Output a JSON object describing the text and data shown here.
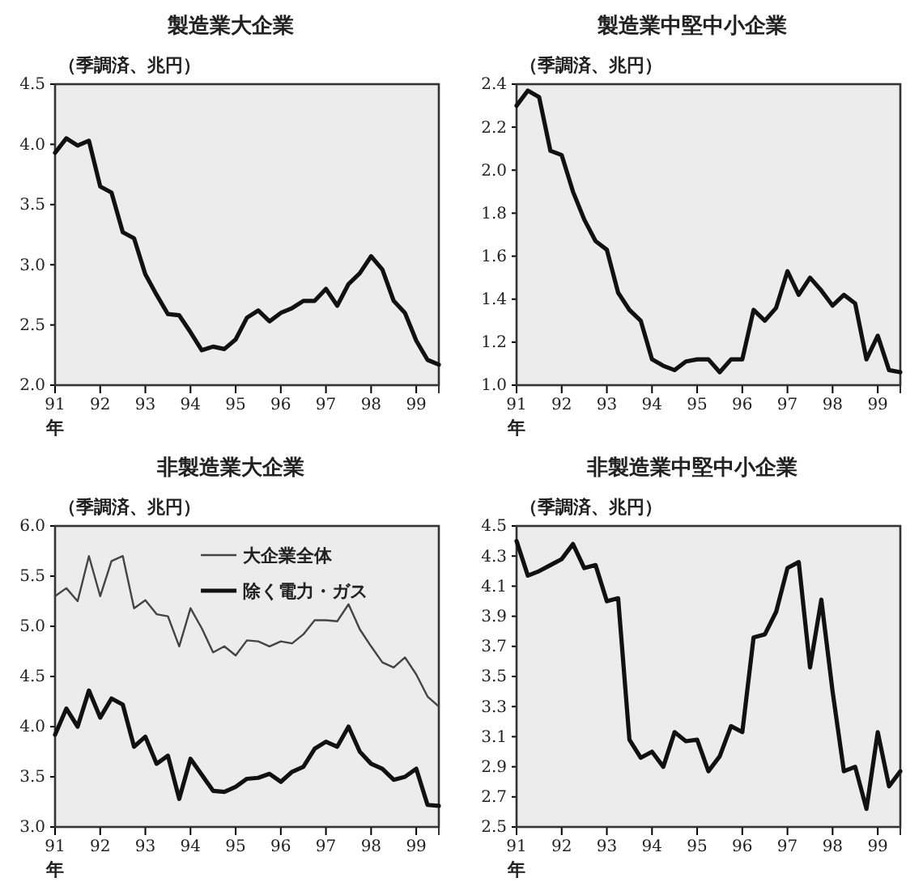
{
  "chart_data": [
    {
      "type": "line",
      "x": [
        1991,
        1991.25,
        1991.5,
        1991.75,
        1992,
        1992.25,
        1992.5,
        1992.75,
        1993,
        1993.25,
        1993.5,
        1993.75,
        1994,
        1994.25,
        1994.5,
        1994.75,
        1995,
        1995.25,
        1995.5,
        1995.75,
        1996,
        1996.25,
        1996.5,
        1996.75,
        1997,
        1997.25,
        1997.5,
        1997.75,
        1998,
        1998.25,
        1998.5,
        1998.75,
        1999,
        1999.25,
        1999.5
      ],
      "title": "製造業大企業",
      "ylabel": "（季調済、兆円）",
      "xlabel": "年",
      "xlim": [
        1991,
        1999.5
      ],
      "xticks": [
        {
          "value": 1991,
          "label": "91"
        },
        {
          "value": 1992,
          "label": "92"
        },
        {
          "value": 1993,
          "label": "93"
        },
        {
          "value": 1994,
          "label": "94"
        },
        {
          "value": 1995,
          "label": "95"
        },
        {
          "value": 1996,
          "label": "96"
        },
        {
          "value": 1997,
          "label": "97"
        },
        {
          "value": 1998,
          "label": "98"
        },
        {
          "value": 1999,
          "label": "99"
        }
      ],
      "ylim": [
        2,
        4.5
      ],
      "yticks": [
        {
          "value": 2,
          "label": "2.0"
        },
        {
          "value": 2.5,
          "label": "2.5"
        },
        {
          "value": 3,
          "label": "3.0"
        },
        {
          "value": 3.5,
          "label": "3.5"
        },
        {
          "value": 4,
          "label": "4.0"
        },
        {
          "value": 4.5,
          "label": "4.5"
        }
      ],
      "grid": false,
      "legend": false,
      "series": [
        {
          "color": "#111111",
          "values": [
            3.93,
            4.05,
            3.99,
            4.03,
            3.65,
            3.6,
            3.27,
            3.22,
            2.92,
            2.75,
            2.59,
            2.58,
            2.44,
            2.29,
            2.32,
            2.3,
            2.38,
            2.56,
            2.62,
            2.53,
            2.6,
            2.64,
            2.7,
            2.7,
            2.8,
            2.66,
            2.84,
            2.93,
            3.07,
            2.96,
            2.7,
            2.6,
            2.37,
            2.21,
            2.17
          ]
        }
      ]
    },
    {
      "type": "line",
      "x": [
        1991,
        1991.25,
        1991.5,
        1991.75,
        1992,
        1992.25,
        1992.5,
        1992.75,
        1993,
        1993.25,
        1993.5,
        1993.75,
        1994,
        1994.25,
        1994.5,
        1994.75,
        1995,
        1995.25,
        1995.5,
        1995.75,
        1996,
        1996.25,
        1996.5,
        1996.75,
        1997,
        1997.25,
        1997.5,
        1997.75,
        1998,
        1998.25,
        1998.5,
        1998.75,
        1999,
        1999.25,
        1999.5
      ],
      "title": "製造業中堅中小企業",
      "ylabel": "（季調済、兆円）",
      "xlabel": "年",
      "xlim": [
        1991,
        1999.5
      ],
      "xticks": [
        {
          "value": 1991,
          "label": "91"
        },
        {
          "value": 1992,
          "label": "92"
        },
        {
          "value": 1993,
          "label": "93"
        },
        {
          "value": 1994,
          "label": "94"
        },
        {
          "value": 1995,
          "label": "95"
        },
        {
          "value": 1996,
          "label": "96"
        },
        {
          "value": 1997,
          "label": "97"
        },
        {
          "value": 1998,
          "label": "98"
        },
        {
          "value": 1999,
          "label": "99"
        }
      ],
      "ylim": [
        1,
        2.4
      ],
      "yticks": [
        {
          "value": 1,
          "label": "1.0"
        },
        {
          "value": 1.2,
          "label": "1.2"
        },
        {
          "value": 1.4,
          "label": "1.4"
        },
        {
          "value": 1.6,
          "label": "1.6"
        },
        {
          "value": 1.8,
          "label": "1.8"
        },
        {
          "value": 2,
          "label": "2.0"
        },
        {
          "value": 2.2,
          "label": "2.2"
        },
        {
          "value": 2.4,
          "label": "2.4"
        }
      ],
      "grid": false,
      "legend": false,
      "series": [
        {
          "color": "#111111",
          "values": [
            2.3,
            2.37,
            2.34,
            2.09,
            2.07,
            1.9,
            1.77,
            1.67,
            1.63,
            1.43,
            1.35,
            1.3,
            1.12,
            1.09,
            1.07,
            1.11,
            1.12,
            1.12,
            1.06,
            1.12,
            1.12,
            1.35,
            1.3,
            1.36,
            1.53,
            1.42,
            1.5,
            1.44,
            1.37,
            1.42,
            1.38,
            1.12,
            1.23,
            1.07,
            1.06
          ]
        }
      ]
    },
    {
      "type": "line",
      "x": [
        1991,
        1991.25,
        1991.5,
        1991.75,
        1992,
        1992.25,
        1992.5,
        1992.75,
        1993,
        1993.25,
        1993.5,
        1993.75,
        1994,
        1994.25,
        1994.5,
        1994.75,
        1995,
        1995.25,
        1995.5,
        1995.75,
        1996,
        1996.25,
        1996.5,
        1996.75,
        1997,
        1997.25,
        1997.5,
        1997.75,
        1998,
        1998.25,
        1998.5,
        1998.75,
        1999,
        1999.25,
        1999.5
      ],
      "title": "非製造業大企業",
      "ylabel": "（季調済、兆円）",
      "xlabel": "年",
      "xlim": [
        1991,
        1999.5
      ],
      "xticks": [
        {
          "value": 1991,
          "label": "91"
        },
        {
          "value": 1992,
          "label": "92"
        },
        {
          "value": 1993,
          "label": "93"
        },
        {
          "value": 1994,
          "label": "94"
        },
        {
          "value": 1995,
          "label": "95"
        },
        {
          "value": 1996,
          "label": "96"
        },
        {
          "value": 1997,
          "label": "97"
        },
        {
          "value": 1998,
          "label": "98"
        },
        {
          "value": 1999,
          "label": "99"
        }
      ],
      "ylim": [
        3,
        6
      ],
      "yticks": [
        {
          "value": 3,
          "label": "3.0"
        },
        {
          "value": 3.5,
          "label": "3.5"
        },
        {
          "value": 4,
          "label": "4.0"
        },
        {
          "value": 4.5,
          "label": "4.5"
        },
        {
          "value": 5,
          "label": "5.0"
        },
        {
          "value": 5.5,
          "label": "5.5"
        },
        {
          "value": 6,
          "label": "6.0"
        }
      ],
      "grid": false,
      "legend": "top",
      "series": [
        {
          "name": "大企業全体",
          "color": "#444444",
          "values": [
            5.3,
            5.38,
            5.25,
            5.7,
            5.3,
            5.65,
            5.7,
            5.18,
            5.26,
            5.12,
            5.1,
            4.8,
            5.18,
            4.98,
            4.74,
            4.8,
            4.71,
            4.86,
            4.85,
            4.8,
            4.85,
            4.83,
            4.92,
            5.06,
            5.06,
            5.05,
            5.22,
            4.97,
            4.8,
            4.64,
            4.59,
            4.69,
            4.52,
            4.3,
            4.2
          ]
        },
        {
          "name": "除く電力・ガス",
          "color": "#111111",
          "values": [
            3.92,
            4.18,
            4.0,
            4.36,
            4.09,
            4.28,
            4.22,
            3.8,
            3.9,
            3.63,
            3.71,
            3.28,
            3.68,
            3.52,
            3.36,
            3.35,
            3.4,
            3.48,
            3.49,
            3.53,
            3.45,
            3.55,
            3.6,
            3.78,
            3.85,
            3.8,
            4.0,
            3.75,
            3.63,
            3.58,
            3.47,
            3.5,
            3.58,
            3.22,
            3.21
          ]
        }
      ]
    },
    {
      "type": "line",
      "x": [
        1991,
        1991.25,
        1991.5,
        1991.75,
        1992,
        1992.25,
        1992.5,
        1992.75,
        1993,
        1993.25,
        1993.5,
        1993.75,
        1994,
        1994.25,
        1994.5,
        1994.75,
        1995,
        1995.25,
        1995.5,
        1995.75,
        1996,
        1996.25,
        1996.5,
        1996.75,
        1997,
        1997.25,
        1997.5,
        1997.75,
        1998,
        1998.25,
        1998.5,
        1998.75,
        1999,
        1999.25,
        1999.5
      ],
      "title": "非製造業中堅中小企業",
      "ylabel": "（季調済、兆円）",
      "xlabel": "年",
      "xlim": [
        1991,
        1999.5
      ],
      "xticks": [
        {
          "value": 1991,
          "label": "91"
        },
        {
          "value": 1992,
          "label": "92"
        },
        {
          "value": 1993,
          "label": "93"
        },
        {
          "value": 1994,
          "label": "94"
        },
        {
          "value": 1995,
          "label": "95"
        },
        {
          "value": 1996,
          "label": "96"
        },
        {
          "value": 1997,
          "label": "97"
        },
        {
          "value": 1998,
          "label": "98"
        },
        {
          "value": 1999,
          "label": "99"
        }
      ],
      "ylim": [
        2.5,
        4.5
      ],
      "yticks": [
        {
          "value": 2.5,
          "label": "2.5"
        },
        {
          "value": 2.7,
          "label": "2.7"
        },
        {
          "value": 2.9,
          "label": "2.9"
        },
        {
          "value": 3.1,
          "label": "3.1"
        },
        {
          "value": 3.3,
          "label": "3.3"
        },
        {
          "value": 3.5,
          "label": "3.5"
        },
        {
          "value": 3.7,
          "label": "3.7"
        },
        {
          "value": 3.9,
          "label": "3.9"
        },
        {
          "value": 4.1,
          "label": "4.1"
        },
        {
          "value": 4.3,
          "label": "4.3"
        },
        {
          "value": 4.5,
          "label": "4.5"
        }
      ],
      "grid": false,
      "legend": false,
      "series": [
        {
          "color": "#111111",
          "values": [
            4.4,
            4.17,
            4.2,
            4.24,
            4.28,
            4.38,
            4.22,
            4.24,
            4.0,
            4.02,
            3.08,
            2.96,
            3.0,
            2.9,
            3.13,
            3.07,
            3.08,
            2.87,
            2.97,
            3.17,
            3.13,
            3.76,
            3.78,
            3.93,
            4.22,
            4.26,
            3.56,
            4.01,
            3.4,
            2.87,
            2.9,
            2.62,
            3.13,
            2.77,
            2.87
          ]
        }
      ]
    }
  ]
}
